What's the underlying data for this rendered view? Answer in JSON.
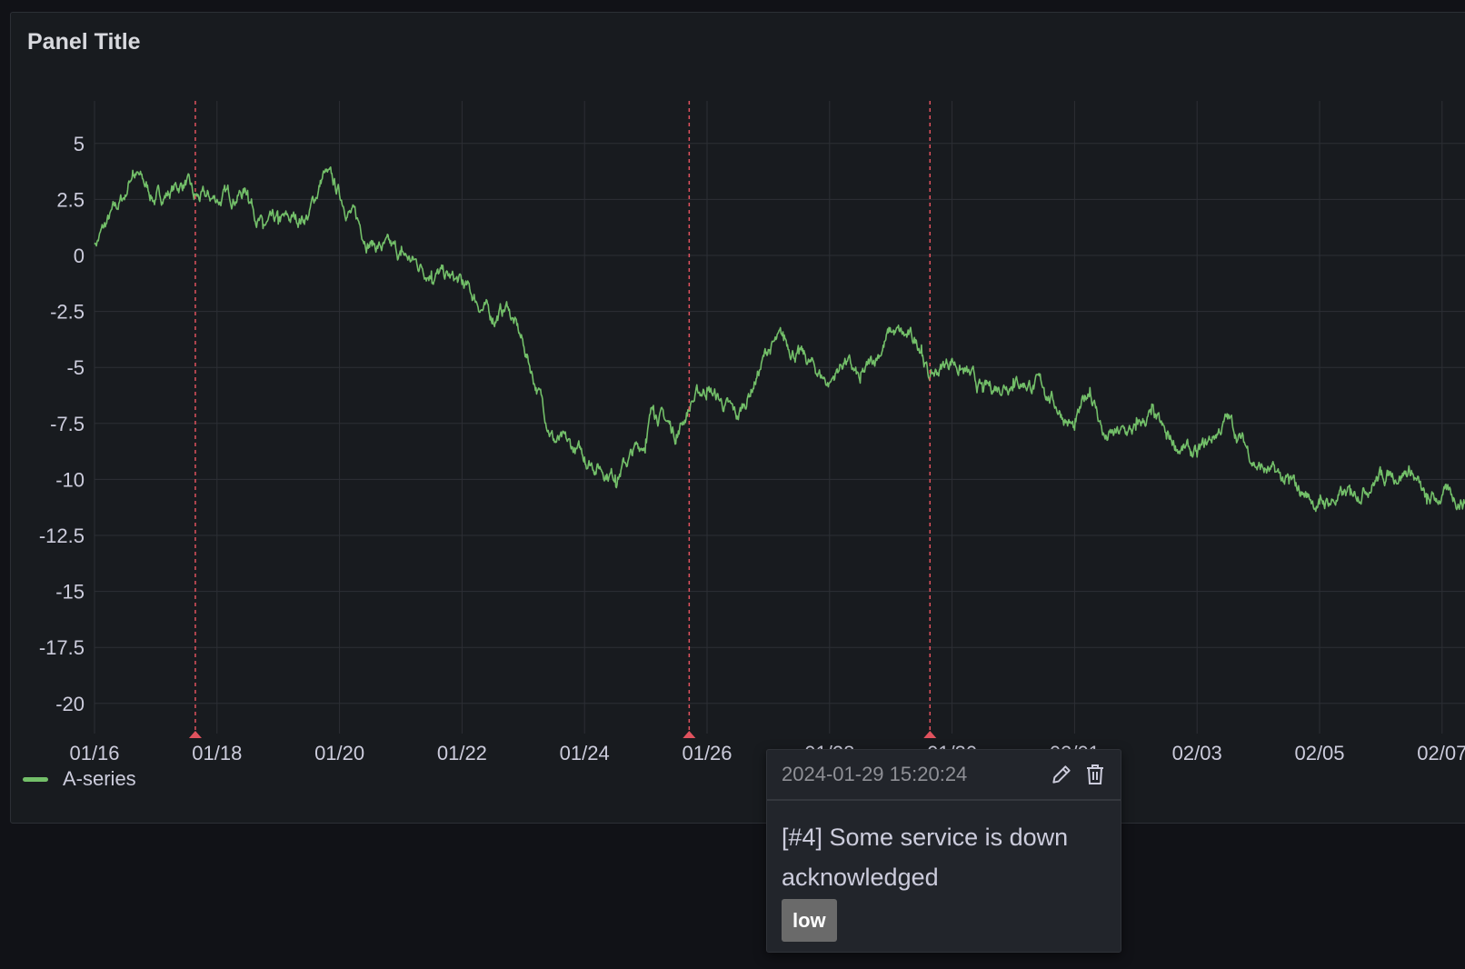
{
  "panel": {
    "title": "Panel Title"
  },
  "colors": {
    "series": "#73bf69",
    "annotation": "#e0525e",
    "grid": "#2c2f35",
    "background": "#181b1f"
  },
  "legend": {
    "items": [
      {
        "name": "A-series",
        "color": "#73bf69"
      }
    ],
    "placement": "bottom-left"
  },
  "chart_data": {
    "type": "line",
    "title": "Panel Title",
    "xlabel": "",
    "ylabel": "",
    "ylim": [
      -21.5,
      6.8
    ],
    "yticks": [
      "5",
      "2.5",
      "0",
      "-2.5",
      "-5",
      "-7.5",
      "-10",
      "-12.5",
      "-15",
      "-17.5",
      "-20"
    ],
    "ytick_values": [
      5,
      2.5,
      0,
      -2.5,
      -5,
      -7.5,
      -10,
      -12.5,
      -15,
      -17.5,
      -20
    ],
    "xticks": [
      "01/16",
      "01/18",
      "01/20",
      "01/22",
      "01/24",
      "01/26",
      "01/28",
      "01/30",
      "02/01",
      "02/03",
      "02/05",
      "02/07"
    ],
    "xtick_dates": [
      "2024-01-16",
      "2024-01-18",
      "2024-01-20",
      "2024-01-22",
      "2024-01-24",
      "2024-01-26",
      "2024-01-28",
      "2024-01-30",
      "2024-02-01",
      "2024-02-03",
      "2024-02-05",
      "2024-02-07"
    ],
    "grid": true,
    "series": [
      {
        "name": "A-series",
        "x": [
          "2024-01-16 00:00",
          "2024-01-16 12:00",
          "2024-01-16 15:00",
          "2024-01-17 00:00",
          "2024-01-17 12:00",
          "2024-01-17 15:00",
          "2024-01-18 00:00",
          "2024-01-18 12:00",
          "2024-01-18 18:00",
          "2024-01-19 00:00",
          "2024-01-19 12:00",
          "2024-01-19 18:00",
          "2024-01-20 00:00",
          "2024-01-20 12:00",
          "2024-01-21 00:00",
          "2024-01-21 12:00",
          "2024-01-22 00:00",
          "2024-01-22 12:00",
          "2024-01-22 18:00",
          "2024-01-23 00:00",
          "2024-01-23 12:00",
          "2024-01-24 00:00",
          "2024-01-24 12:00",
          "2024-01-25 00:00",
          "2024-01-25 03:00",
          "2024-01-25 12:00",
          "2024-01-25 18:00",
          "2024-01-26 00:00",
          "2024-01-26 12:00",
          "2024-01-27 00:00",
          "2024-01-27 06:00",
          "2024-01-27 12:00",
          "2024-01-28 00:00",
          "2024-01-28 06:00",
          "2024-01-28 12:00",
          "2024-01-29 00:00",
          "2024-01-29 12:00",
          "2024-01-29 15:00",
          "2024-01-30 00:00",
          "2024-01-30 12:00",
          "2024-01-31 00:00",
          "2024-01-31 12:00",
          "2024-02-01 00:00",
          "2024-02-01 06:00",
          "2024-02-01 12:00",
          "2024-02-02 00:00",
          "2024-02-02 06:00",
          "2024-02-02 12:00",
          "2024-02-03 00:00",
          "2024-02-03 12:00",
          "2024-02-04 00:00",
          "2024-02-04 12:00",
          "2024-02-05 00:00",
          "2024-02-05 12:00",
          "2024-02-06 00:00",
          "2024-02-06 12:00",
          "2024-02-06 18:00",
          "2024-02-07 00:00",
          "2024-02-07 12:00"
        ],
        "values": [
          0.5,
          2.7,
          3.8,
          2.5,
          3.3,
          2.5,
          2.5,
          2.9,
          1.2,
          1.4,
          1.8,
          3.7,
          2.7,
          0.6,
          0,
          -0.7,
          -1.3,
          -2.8,
          -2.3,
          -4,
          -8.2,
          -9,
          -9.8,
          -8.2,
          -6.7,
          -8,
          -6.5,
          -5.9,
          -7.3,
          -4.2,
          -3.8,
          -4.4,
          -5.7,
          -4.6,
          -5.7,
          -3.4,
          -4,
          -5.5,
          -4.6,
          -6.1,
          -5.5,
          -5.9,
          -7.8,
          -5.9,
          -8.2,
          -7.8,
          -7.1,
          -8.2,
          -9,
          -7.3,
          -9.4,
          -10.2,
          -11.1,
          -10.7,
          -9.8,
          -9.6,
          -11.1,
          -10.7,
          -11
        ]
      }
    ],
    "annotations": [
      {
        "time": "2024-01-17 15:30"
      },
      {
        "time": "2024-01-25 17:00"
      },
      {
        "time": "2024-01-29 15:20:24"
      }
    ]
  },
  "tooltip": {
    "time": "2024-01-29 15:20:24",
    "text": "[#4] Some service is down acknowledged",
    "tag": "low",
    "edit_icon": "pencil-icon",
    "delete_icon": "trash-icon"
  }
}
